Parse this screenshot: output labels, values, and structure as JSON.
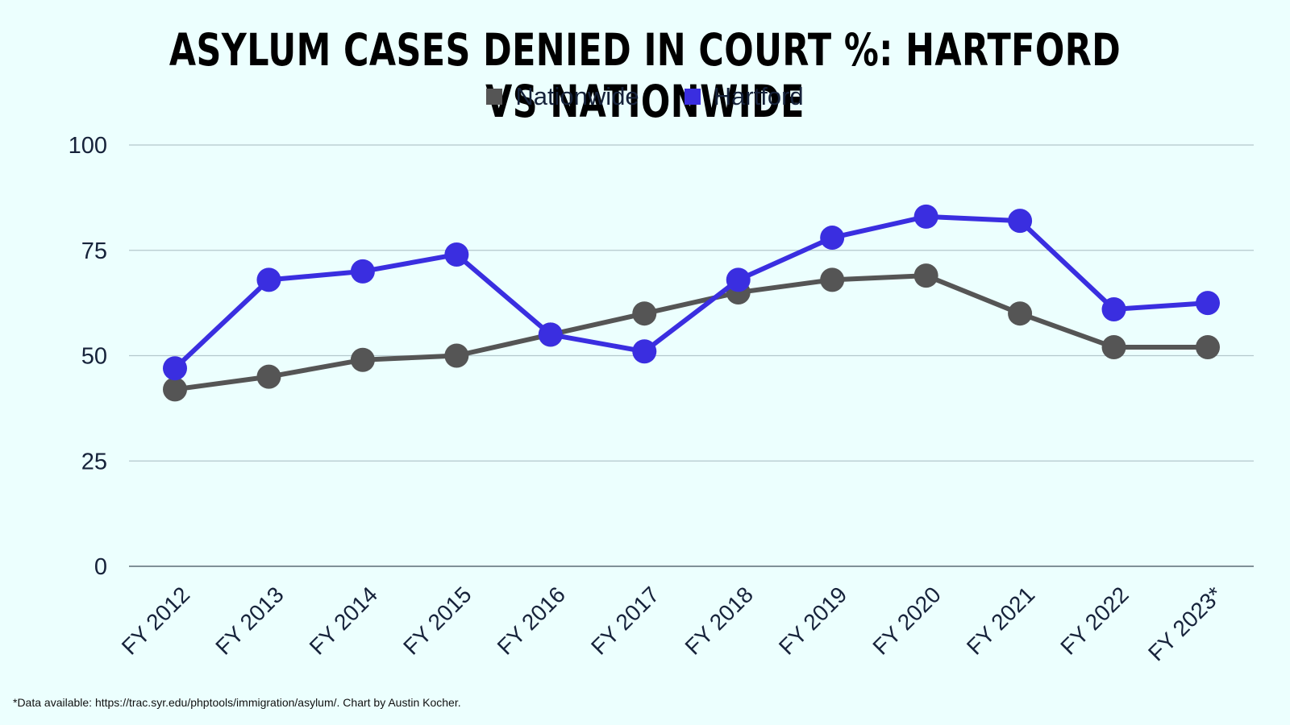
{
  "title": "ASYLUM CASES DENIED IN COURT %: HARTFORD VS NATIONWIDE",
  "source_note": "*Data available: https://trac.syr.edu/phptools/immigration/asylum/. Chart by Austin Kocher.",
  "chart_data": {
    "type": "line",
    "categories": [
      "FY 2012",
      "FY 2013",
      "FY 2014",
      "FY 2015",
      "FY 2016",
      "FY 2017",
      "FY 2018",
      "FY 2019",
      "FY 2020",
      "FY 2021",
      "FY 2022",
      "FY 2023*"
    ],
    "series": [
      {
        "name": "Nationwide",
        "color": "#555555",
        "values": [
          42,
          45,
          49,
          50,
          55,
          60,
          65,
          68,
          69,
          60,
          52,
          52
        ]
      },
      {
        "name": "Hartford",
        "color": "#3a2ee0",
        "values": [
          47,
          68,
          70,
          74,
          55,
          51,
          68,
          78,
          83,
          82,
          61,
          62.5
        ]
      }
    ],
    "y_ticks": [
      0,
      25,
      50,
      75,
      100
    ],
    "ylim": [
      0,
      100
    ],
    "grid": true,
    "legend_position": "top-center"
  }
}
